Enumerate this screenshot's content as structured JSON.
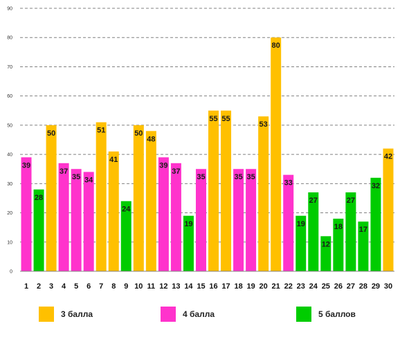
{
  "chart_data": {
    "type": "bar",
    "title": "",
    "xlabel": "",
    "ylabel": "",
    "ylim": [
      0,
      90
    ],
    "yticks": [
      0,
      10,
      20,
      30,
      40,
      50,
      60,
      70,
      80,
      90
    ],
    "grid": true,
    "legend_position": "bottom",
    "categories": [
      "1",
      "2",
      "3",
      "4",
      "5",
      "6",
      "7",
      "8",
      "9",
      "10",
      "11",
      "12",
      "13",
      "14",
      "15",
      "16",
      "17",
      "18",
      "19",
      "20",
      "21",
      "22",
      "23",
      "24",
      "25",
      "26",
      "27",
      "28",
      "29",
      "30"
    ],
    "values": [
      39,
      28,
      50,
      37,
      35,
      34,
      51,
      41,
      24,
      50,
      48,
      39,
      37,
      19,
      35,
      55,
      55,
      35,
      35,
      53,
      80,
      33,
      19,
      27,
      12,
      18,
      27,
      17,
      32,
      42
    ],
    "grades": [
      4,
      5,
      3,
      4,
      4,
      4,
      3,
      3,
      5,
      3,
      3,
      4,
      4,
      5,
      4,
      3,
      3,
      4,
      4,
      3,
      3,
      4,
      5,
      5,
      5,
      5,
      5,
      5,
      5,
      3
    ],
    "series": [
      {
        "name": "3 балла",
        "grade": 3,
        "color": "#FFC000"
      },
      {
        "name": "4 балла",
        "grade": 4,
        "color": "#FF33CC"
      },
      {
        "name": "5 баллов",
        "grade": 5,
        "color": "#00CC00"
      }
    ]
  }
}
